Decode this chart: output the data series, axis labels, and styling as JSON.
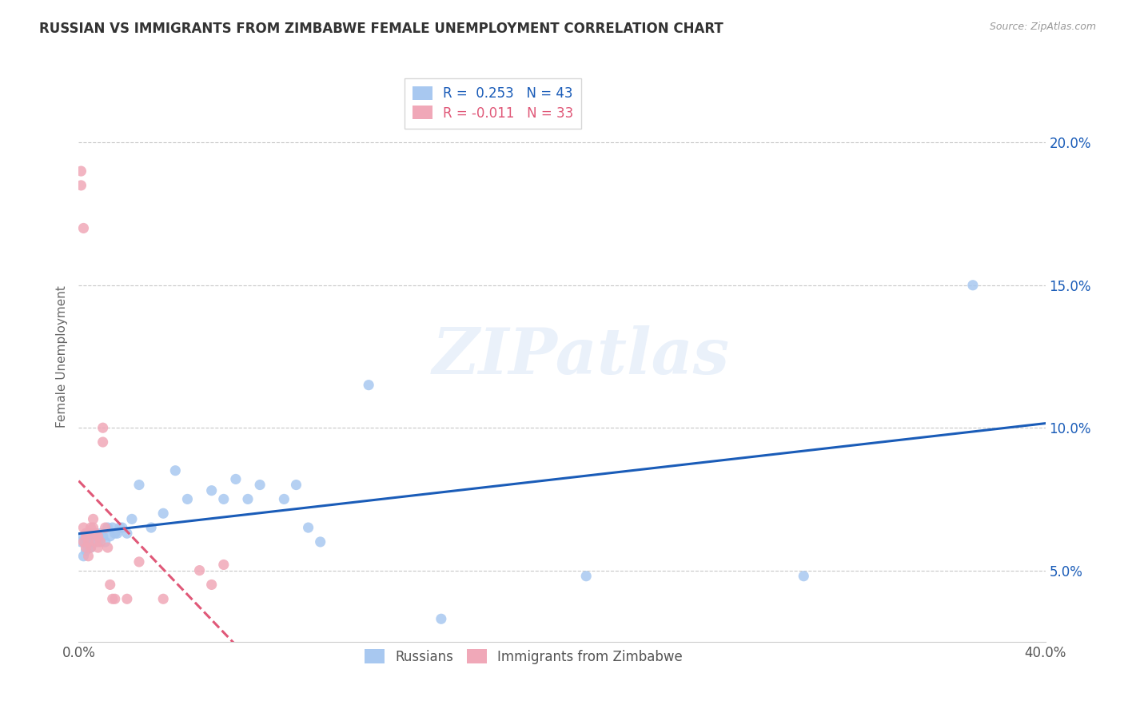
{
  "title": "RUSSIAN VS IMMIGRANTS FROM ZIMBABWE FEMALE UNEMPLOYMENT CORRELATION CHART",
  "source": "Source: ZipAtlas.com",
  "ylabel": "Female Unemployment",
  "ytick_labels": [
    "5.0%",
    "10.0%",
    "15.0%",
    "20.0%"
  ],
  "ytick_values": [
    0.05,
    0.1,
    0.15,
    0.2
  ],
  "xlim": [
    0.0,
    0.4
  ],
  "ylim": [
    0.025,
    0.225
  ],
  "legend_labels": [
    "Russians",
    "Immigrants from Zimbabwe"
  ],
  "russian_color": "#a8c8f0",
  "zimbabwe_color": "#f0a8b8",
  "russian_line_color": "#1a5cb8",
  "zimbabwe_line_color": "#e05878",
  "russians_x": [
    0.001,
    0.002,
    0.002,
    0.003,
    0.003,
    0.004,
    0.004,
    0.005,
    0.005,
    0.006,
    0.007,
    0.008,
    0.009,
    0.01,
    0.011,
    0.012,
    0.013,
    0.014,
    0.015,
    0.016,
    0.017,
    0.018,
    0.02,
    0.022,
    0.025,
    0.03,
    0.035,
    0.04,
    0.045,
    0.055,
    0.06,
    0.065,
    0.07,
    0.075,
    0.085,
    0.09,
    0.095,
    0.1,
    0.12,
    0.15,
    0.21,
    0.3,
    0.37
  ],
  "russians_y": [
    0.06,
    0.062,
    0.055,
    0.057,
    0.06,
    0.058,
    0.063,
    0.062,
    0.058,
    0.06,
    0.063,
    0.06,
    0.063,
    0.062,
    0.06,
    0.065,
    0.062,
    0.065,
    0.063,
    0.063,
    0.065,
    0.065,
    0.063,
    0.068,
    0.08,
    0.065,
    0.07,
    0.085,
    0.075,
    0.078,
    0.075,
    0.082,
    0.075,
    0.08,
    0.075,
    0.08,
    0.065,
    0.06,
    0.115,
    0.033,
    0.048,
    0.048,
    0.15
  ],
  "zimbabwe_x": [
    0.001,
    0.001,
    0.002,
    0.002,
    0.002,
    0.003,
    0.003,
    0.003,
    0.004,
    0.004,
    0.005,
    0.005,
    0.005,
    0.006,
    0.006,
    0.007,
    0.007,
    0.008,
    0.008,
    0.009,
    0.01,
    0.01,
    0.011,
    0.012,
    0.013,
    0.014,
    0.015,
    0.02,
    0.025,
    0.035,
    0.05,
    0.055,
    0.06
  ],
  "zimbabwe_y": [
    0.19,
    0.185,
    0.17,
    0.065,
    0.06,
    0.063,
    0.062,
    0.058,
    0.06,
    0.055,
    0.065,
    0.063,
    0.058,
    0.068,
    0.065,
    0.063,
    0.06,
    0.062,
    0.058,
    0.06,
    0.1,
    0.095,
    0.065,
    0.058,
    0.045,
    0.04,
    0.04,
    0.04,
    0.053,
    0.04,
    0.05,
    0.045,
    0.052
  ],
  "watermark_text": "ZIPatlas",
  "background_color": "#ffffff",
  "grid_color": "#c8c8c8",
  "r_russian": "0.253",
  "n_russian": "43",
  "r_zimbabwe": "-0.011",
  "n_zimbabwe": "33"
}
